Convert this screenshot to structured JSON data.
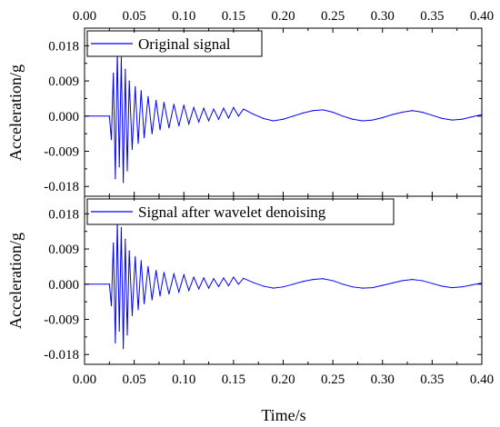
{
  "chart_data": [
    {
      "type": "line",
      "legend": "Original signal",
      "legend_position": "top-left",
      "ylabel": "Acceleration/g",
      "x_ticks": [
        "0.00",
        "0.05",
        "0.10",
        "0.15",
        "0.20",
        "0.25",
        "0.30",
        "0.35",
        "0.40"
      ],
      "y_ticks": [
        "0.018",
        "0.009",
        "0.000",
        "-0.009",
        "-0.018"
      ],
      "xlim": [
        0.0,
        0.4
      ],
      "ylim": [
        -0.0205,
        0.0225
      ],
      "color": "#0000ff",
      "series": [
        {
          "name": "Original signal",
          "x": [
            0.0,
            0.025,
            0.027,
            0.029,
            0.031,
            0.033,
            0.035,
            0.037,
            0.039,
            0.041,
            0.043,
            0.045,
            0.048,
            0.051,
            0.054,
            0.057,
            0.06,
            0.064,
            0.068,
            0.072,
            0.076,
            0.08,
            0.085,
            0.09,
            0.095,
            0.1,
            0.105,
            0.11,
            0.115,
            0.12,
            0.125,
            0.13,
            0.135,
            0.14,
            0.145,
            0.15,
            0.155,
            0.16,
            0.17,
            0.18,
            0.19,
            0.2,
            0.21,
            0.22,
            0.23,
            0.24,
            0.25,
            0.26,
            0.27,
            0.28,
            0.29,
            0.3,
            0.31,
            0.32,
            0.33,
            0.34,
            0.35,
            0.36,
            0.37,
            0.38,
            0.39,
            0.4
          ],
          "y": [
            0.0,
            0.0,
            -0.006,
            0.011,
            -0.016,
            0.0165,
            -0.013,
            0.015,
            -0.017,
            0.012,
            -0.014,
            0.009,
            -0.0085,
            0.0075,
            -0.007,
            0.0065,
            -0.0055,
            0.005,
            -0.0045,
            0.004,
            -0.0035,
            0.0035,
            -0.003,
            0.003,
            -0.0025,
            0.0028,
            -0.002,
            0.0022,
            -0.0015,
            0.002,
            -0.0012,
            0.0018,
            -0.0008,
            0.002,
            -0.0005,
            0.0022,
            0.0,
            0.0018,
            0.0005,
            -0.0006,
            -0.0012,
            -0.0008,
            0.0,
            0.0008,
            0.0014,
            0.0016,
            0.001,
            0.0,
            -0.0008,
            -0.0012,
            -0.001,
            -0.0004,
            0.0004,
            0.001,
            0.0014,
            0.001,
            0.0002,
            -0.0006,
            -0.001,
            -0.0008,
            -0.0002,
            0.0004
          ]
        }
      ]
    },
    {
      "type": "line",
      "legend": "Signal after wavelet denoising",
      "legend_position": "top-left",
      "ylabel": "Acceleration/g",
      "xlabel": "Time/s",
      "x_ticks": [
        "0.00",
        "0.05",
        "0.10",
        "0.15",
        "0.20",
        "0.25",
        "0.30",
        "0.35",
        "0.40"
      ],
      "y_ticks": [
        "0.018",
        "0.009",
        "0.000",
        "-0.009",
        "-0.018"
      ],
      "xlim": [
        0.0,
        0.4
      ],
      "ylim": [
        -0.0205,
        0.0225
      ],
      "color": "#0000ff",
      "series": [
        {
          "name": "Signal after wavelet denoising",
          "x": [
            0.0,
            0.025,
            0.027,
            0.029,
            0.031,
            0.033,
            0.035,
            0.037,
            0.039,
            0.041,
            0.043,
            0.045,
            0.048,
            0.051,
            0.054,
            0.057,
            0.06,
            0.064,
            0.068,
            0.072,
            0.076,
            0.08,
            0.085,
            0.09,
            0.095,
            0.1,
            0.105,
            0.11,
            0.115,
            0.12,
            0.125,
            0.13,
            0.135,
            0.14,
            0.145,
            0.15,
            0.155,
            0.16,
            0.17,
            0.18,
            0.19,
            0.2,
            0.21,
            0.22,
            0.23,
            0.24,
            0.25,
            0.26,
            0.27,
            0.28,
            0.29,
            0.3,
            0.31,
            0.32,
            0.33,
            0.34,
            0.35,
            0.36,
            0.37,
            0.38,
            0.39,
            0.4
          ],
          "y": [
            0.0,
            0.0,
            -0.0055,
            0.0105,
            -0.015,
            0.016,
            -0.012,
            0.0145,
            -0.0165,
            0.0115,
            -0.013,
            0.0085,
            -0.008,
            0.007,
            -0.0065,
            0.006,
            -0.005,
            0.0045,
            -0.004,
            0.0035,
            -0.003,
            0.003,
            -0.0025,
            0.0026,
            -0.002,
            0.0024,
            -0.0016,
            0.0018,
            -0.0012,
            0.0016,
            -0.001,
            0.0014,
            -0.0006,
            0.0016,
            -0.0004,
            0.0018,
            0.0,
            0.0015,
            0.0004,
            -0.0005,
            -0.001,
            -0.0007,
            0.0,
            0.0007,
            0.0012,
            0.0014,
            0.0009,
            0.0,
            -0.0007,
            -0.001,
            -0.0009,
            -0.0003,
            0.0003,
            0.0009,
            0.0012,
            0.0009,
            0.0002,
            -0.0005,
            -0.0009,
            -0.0007,
            -0.0002,
            0.0003
          ]
        }
      ]
    }
  ]
}
